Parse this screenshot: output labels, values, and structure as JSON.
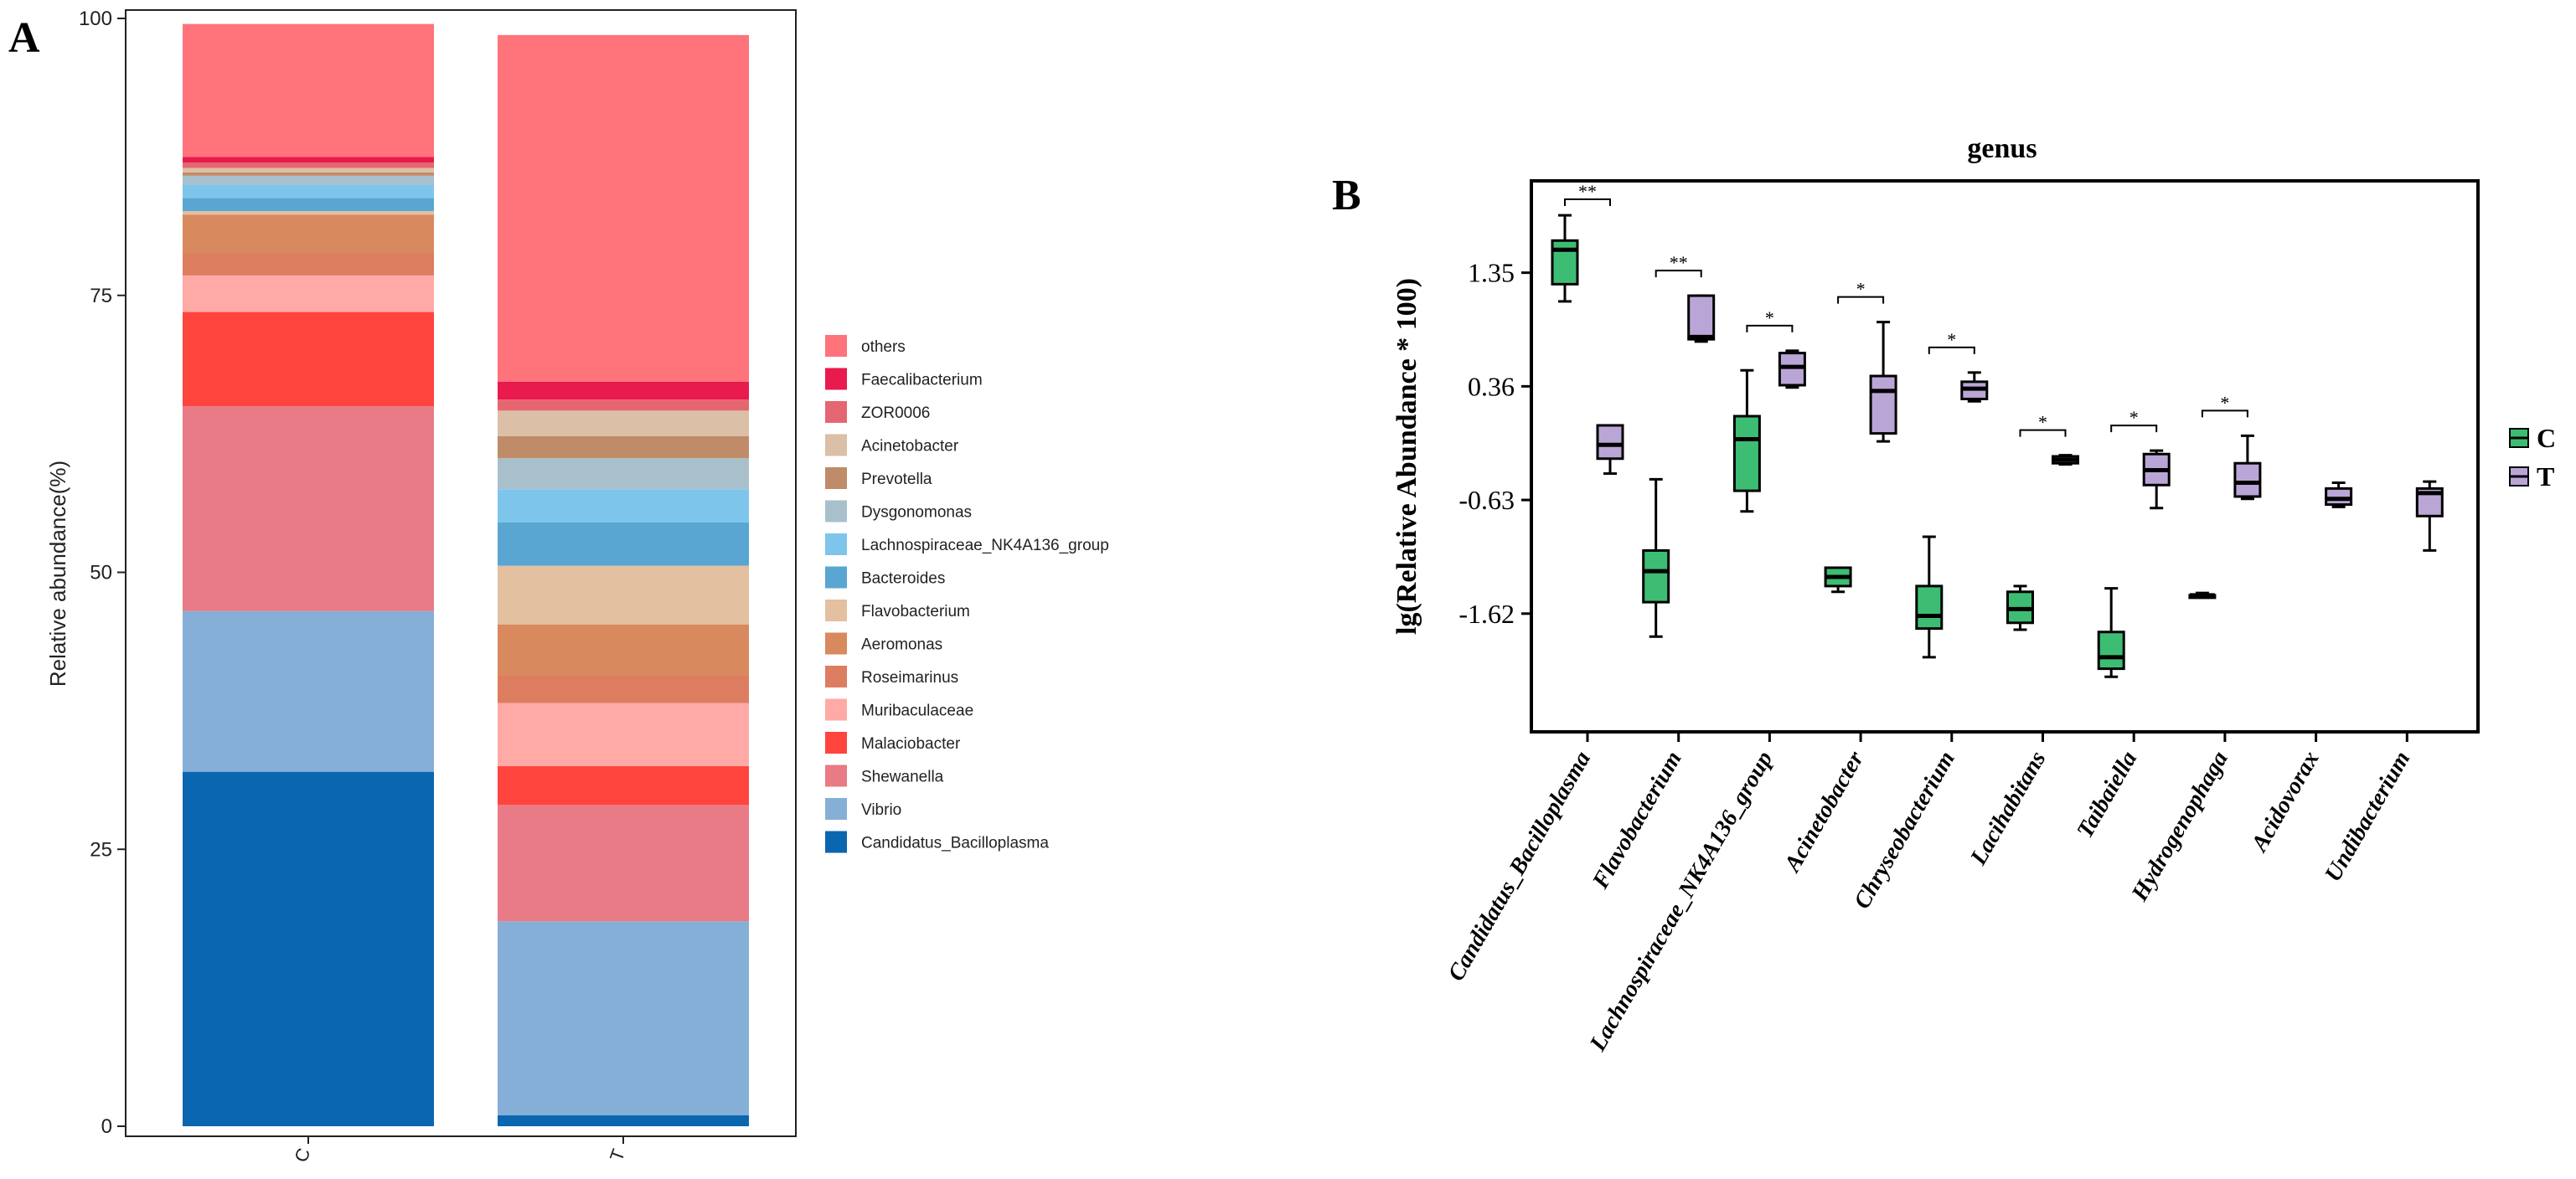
{
  "panels": {
    "a_label": "A",
    "b_label": "B"
  },
  "chart_data": [
    {
      "type": "bar",
      "subtype": "stacked-percent",
      "panel": "A",
      "title": "",
      "xlabel": "",
      "ylabel": "Relative abundance(%)",
      "ylim": [
        0,
        100
      ],
      "yticks": [
        "0",
        "25",
        "50",
        "75",
        "100"
      ],
      "categories": [
        "C",
        "T"
      ],
      "legend_position": "right",
      "series": [
        {
          "name": "Candidatus_Bacilloplasma",
          "color": "#0b66b0",
          "values": [
            32.0,
            1.0
          ]
        },
        {
          "name": "Vibrio",
          "color": "#85afd6",
          "values": [
            14.5,
            17.5
          ]
        },
        {
          "name": "Shewanella",
          "color": "#e87b86",
          "values": [
            18.5,
            10.5
          ]
        },
        {
          "name": "Malaciobacter",
          "color": "#ff443d",
          "values": [
            8.5,
            3.5
          ]
        },
        {
          "name": "Muribaculaceae",
          "color": "#ffaaa6",
          "values": [
            3.3,
            5.7
          ]
        },
        {
          "name": "Roseimarinus",
          "color": "#dd7d60",
          "values": [
            2.0,
            2.5
          ]
        },
        {
          "name": "Aeromonas",
          "color": "#d8895e",
          "values": [
            3.5,
            4.6
          ]
        },
        {
          "name": "Flavobacterium",
          "color": "#e3c0a0",
          "values": [
            0.3,
            5.3
          ]
        },
        {
          "name": "Bacteroides",
          "color": "#5aa6d2",
          "values": [
            1.2,
            3.9
          ]
        },
        {
          "name": "Lachnospiraceae_NK4A136_group",
          "color": "#7ec5ec",
          "values": [
            1.2,
            3.0
          ]
        },
        {
          "name": "Dysgonomonas",
          "color": "#a8c0cb",
          "values": [
            0.8,
            2.8
          ]
        },
        {
          "name": "Prevotella",
          "color": "#c08b68",
          "values": [
            0.3,
            2.0
          ]
        },
        {
          "name": "Acinetobacter",
          "color": "#dbbfa6",
          "values": [
            0.4,
            2.3
          ]
        },
        {
          "name": "ZOR0006",
          "color": "#e56670",
          "values": [
            0.5,
            1.0
          ]
        },
        {
          "name": "Faecalibacterium",
          "color": "#e81a4e",
          "values": [
            0.5,
            1.6
          ]
        },
        {
          "name": "others",
          "color": "#ff737b",
          "values": [
            12.0,
            31.3
          ]
        }
      ]
    },
    {
      "type": "box",
      "panel": "B",
      "title": "genus",
      "xlabel": "",
      "ylabel": "lg(Relative Abundance * 100)",
      "ylim": [
        -2.65,
        2.15
      ],
      "yticks": [
        1.35,
        0.36,
        -0.63,
        -1.62
      ],
      "ytick_labels": [
        "1.35",
        "0.36",
        "-0.63",
        "-1.62"
      ],
      "legend_position": "right",
      "groups": [
        {
          "name": "C",
          "color": "#3dbd73"
        },
        {
          "name": "T",
          "color": "#baa6d6"
        }
      ],
      "categories": [
        "Candidatus_Bacilloplasma",
        "Flavobacterium",
        "Lachnospiraceae_NK4A136_group",
        "Acinetobacter",
        "Chryseobacterium",
        "Lacihabitans",
        "Taibaiella",
        "Hydrogenophaga",
        "Acidovorax",
        "Undibacterium"
      ],
      "significance": [
        "**",
        "**",
        "*",
        "*",
        "*",
        "*",
        "*",
        "*",
        "",
        ""
      ],
      "boxes": {
        "C": [
          {
            "min": 1.1,
            "q1": 1.25,
            "median": 1.55,
            "q3": 1.63,
            "max": 1.85
          },
          {
            "min": -1.82,
            "q1": -1.52,
            "median": -1.25,
            "q3": -1.07,
            "max": -0.45
          },
          {
            "min": -0.73,
            "q1": -0.55,
            "median": -0.1,
            "q3": 0.1,
            "max": 0.5
          },
          {
            "min": -1.43,
            "q1": -1.38,
            "median": -1.3,
            "q3": -1.22,
            "max": -1.22
          },
          {
            "min": -2.0,
            "q1": -1.75,
            "median": -1.64,
            "q3": -1.38,
            "max": -0.95
          },
          {
            "min": -1.76,
            "q1": -1.7,
            "median": -1.58,
            "q3": -1.43,
            "max": -1.38
          },
          {
            "min": -2.17,
            "q1": -2.1,
            "median": -2.0,
            "q3": -1.78,
            "max": -1.4
          },
          {
            "min": -1.48,
            "q1": -1.46,
            "median": -1.46,
            "q3": -1.46,
            "max": -1.44
          },
          null,
          null
        ],
        "T": [
          {
            "min": -0.4,
            "q1": -0.27,
            "median": -0.15,
            "q3": 0.02,
            "max": 0.02
          },
          {
            "min": 0.75,
            "q1": 0.77,
            "median": 0.79,
            "q3": 1.15,
            "max": 1.15
          },
          {
            "min": 0.35,
            "q1": 0.37,
            "median": 0.53,
            "q3": 0.65,
            "max": 0.67
          },
          {
            "min": -0.12,
            "q1": -0.05,
            "median": 0.32,
            "q3": 0.45,
            "max": 0.92
          },
          {
            "min": 0.23,
            "q1": 0.25,
            "median": 0.34,
            "q3": 0.4,
            "max": 0.48
          },
          {
            "min": -0.32,
            "q1": -0.31,
            "median": -0.28,
            "q3": -0.25,
            "max": -0.24
          },
          {
            "min": -0.7,
            "q1": -0.5,
            "median": -0.37,
            "q3": -0.23,
            "max": -0.2
          },
          {
            "min": -0.62,
            "q1": -0.6,
            "median": -0.48,
            "q3": -0.31,
            "max": -0.07
          },
          {
            "min": -0.69,
            "q1": -0.67,
            "median": -0.62,
            "q3": -0.53,
            "max": -0.48
          },
          {
            "min": -1.07,
            "q1": -0.77,
            "median": -0.57,
            "q3": -0.53,
            "max": -0.47
          }
        ]
      }
    }
  ]
}
